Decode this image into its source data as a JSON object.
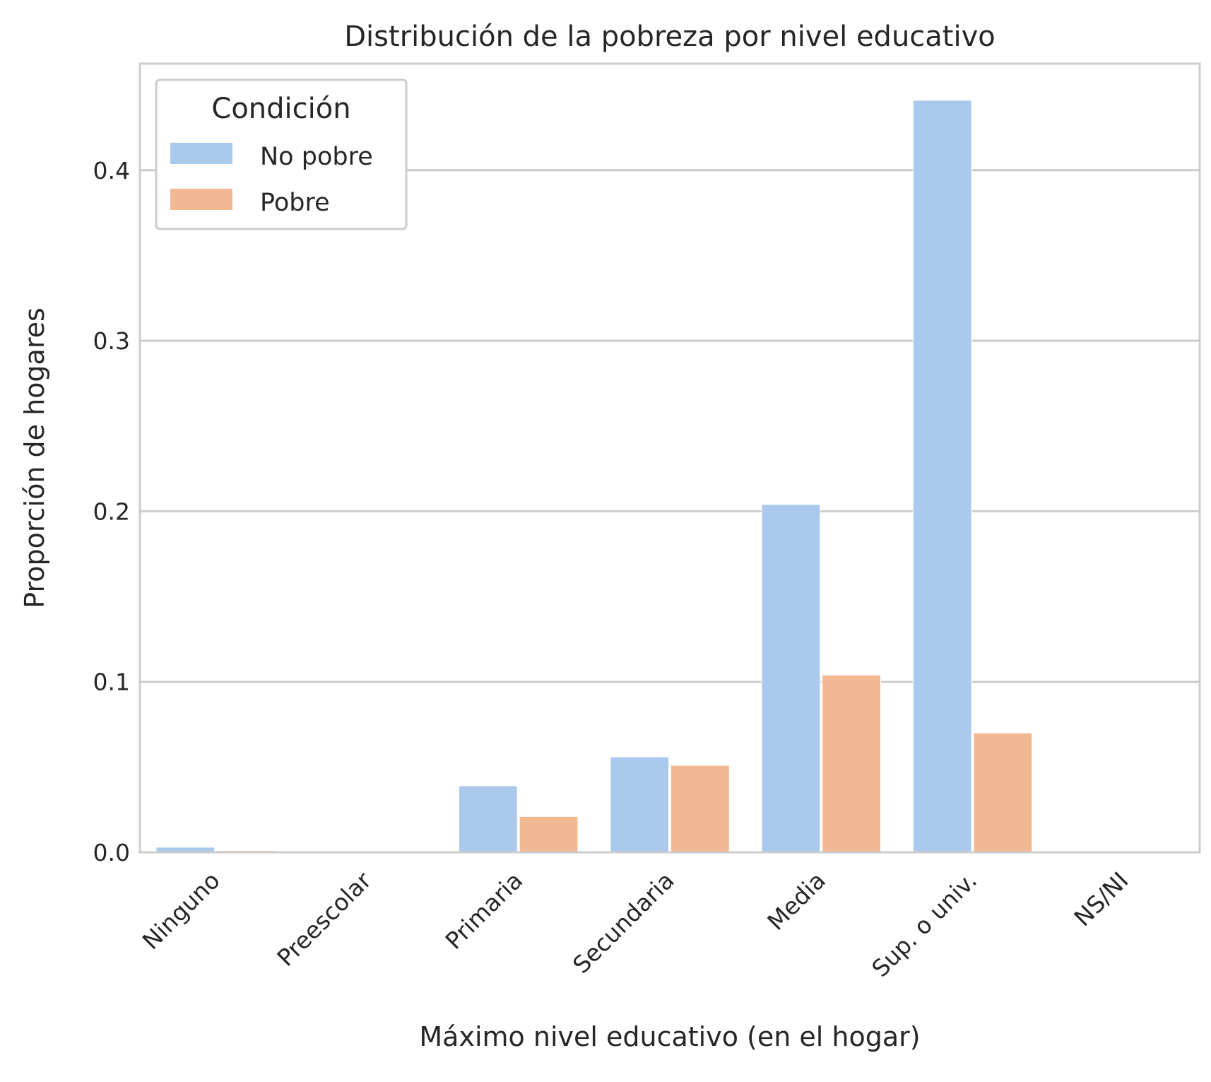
{
  "chart_data": {
    "type": "bar",
    "title": "Distribución de la pobreza por nivel educativo",
    "xlabel": "Máximo nivel educativo (en el hogar)",
    "ylabel": "Proporción de hogares",
    "categories": [
      "Ninguno",
      "Preescolar",
      "Primaria",
      "Secundaria",
      "Media",
      "Sup. o univ.",
      "NS/NI"
    ],
    "series": [
      {
        "name": "No pobre",
        "color": "#abc9ed",
        "values": [
          0.003,
          0.0,
          0.039,
          0.056,
          0.204,
          0.441,
          0.0
        ]
      },
      {
        "name": "Pobre",
        "color": "#f1b892",
        "values": [
          0.001,
          0.0,
          0.021,
          0.051,
          0.104,
          0.07,
          0.0
        ]
      }
    ],
    "yticks": [
      0.0,
      0.1,
      0.2,
      0.3,
      0.4
    ],
    "ytick_labels": [
      "0.0",
      "0.1",
      "0.2",
      "0.3",
      "0.4"
    ],
    "ylim": [
      0,
      0.4625
    ],
    "grid": "horizontal",
    "legend": {
      "title": "Condición",
      "position": "top-left"
    }
  }
}
